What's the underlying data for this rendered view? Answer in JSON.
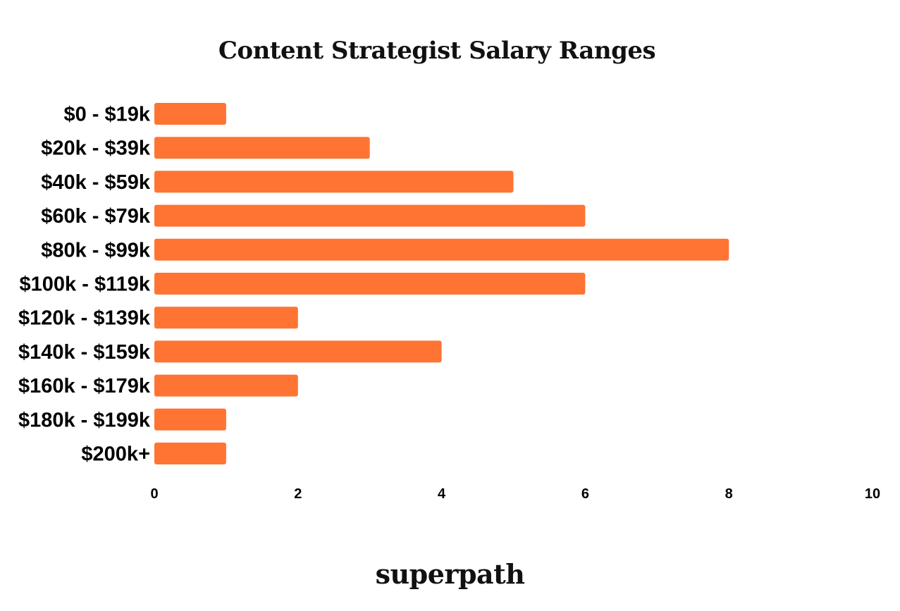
{
  "chart_data": {
    "type": "bar",
    "orientation": "horizontal",
    "title": "Content Strategist Salary Ranges",
    "categories": [
      "$0 - $19k",
      "$20k - $39k",
      "$40k - $59k",
      "$60k - $79k",
      "$80k - $99k",
      "$100k - $119k",
      "$120k - $139k",
      "$140k - $159k",
      "$160k - $179k",
      "$180k - $199k",
      "$200k+"
    ],
    "values": [
      1,
      3,
      5,
      6,
      8,
      6,
      2,
      4,
      2,
      1,
      1
    ],
    "xlim": [
      0,
      10
    ],
    "xticks": [
      "0",
      "2",
      "4",
      "6",
      "8",
      "10"
    ],
    "xlabel": "",
    "ylabel": "",
    "grid": false,
    "bar_color": "#ff7433"
  },
  "brand": {
    "name": "superpath"
  }
}
